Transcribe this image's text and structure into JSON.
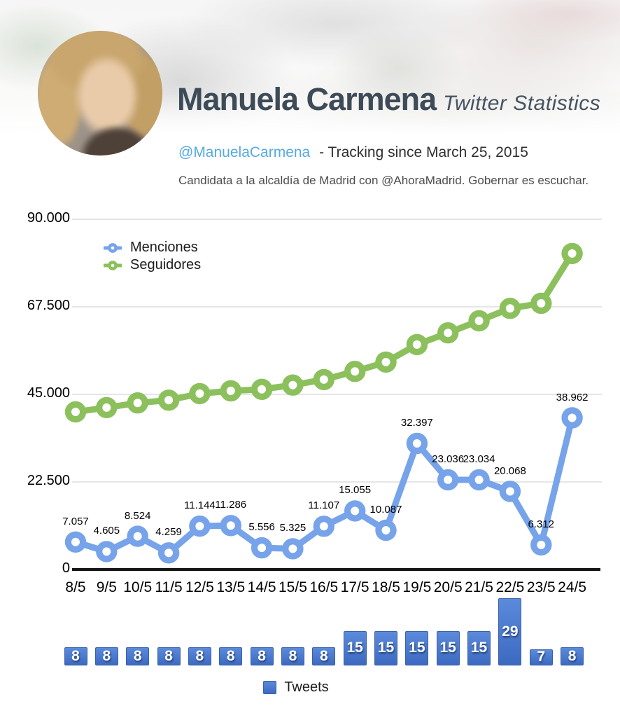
{
  "header": {
    "title": "Manuela Carmena",
    "subtitle": "Twitter Statistics",
    "handle": "@ManuelaCarmena",
    "tracking": "- Tracking since March 25, 2015",
    "bio": "Candidata a la alcaldía de Madrid con @AhoraMadrid. Gobernar es escuchar.",
    "handle_color": "#55aae2",
    "title_color": "#3d4b58"
  },
  "chart_data": [
    {
      "type": "line",
      "title": "",
      "xlabel": "",
      "ylabel": "",
      "ylim": [
        0,
        90000
      ],
      "grid": true,
      "legend_position": "top-left",
      "x": [
        "8/5",
        "9/5",
        "10/5",
        "11/5",
        "12/5",
        "13/5",
        "14/5",
        "15/5",
        "16/5",
        "17/5",
        "18/5",
        "19/5",
        "20/5",
        "21/5",
        "22/5",
        "23/5",
        "24/5"
      ],
      "yticks": [
        {
          "label": "90.000",
          "value": 90000
        },
        {
          "label": "67.500",
          "value": 67500
        },
        {
          "label": "45.000",
          "value": 45000
        },
        {
          "label": "22.500",
          "value": 22500
        },
        {
          "label": "0",
          "value": 0
        }
      ],
      "series": [
        {
          "name": "Menciones",
          "color": "#76a3e9",
          "values": [
            7057,
            4605,
            8524,
            4259,
            11144,
            11286,
            5556,
            5325,
            11107,
            15055,
            10087,
            32397,
            23036,
            23034,
            20068,
            6312,
            38962
          ],
          "labels": [
            "7.057",
            "4.605",
            "8.524",
            "4.259",
            "11.144",
            "11.286",
            "5.556",
            "5.325",
            "11.107",
            "15.055",
            "10.087",
            "32.397",
            "23.036",
            "23.034",
            "20.068",
            "6.312",
            "38.962"
          ]
        },
        {
          "name": "Seguidores",
          "color": "#8cc05d",
          "values": [
            40500,
            41600,
            42800,
            43500,
            45200,
            45900,
            46300,
            47400,
            48800,
            50900,
            53300,
            57800,
            60800,
            63900,
            67100,
            68400,
            81200
          ],
          "values_estimated": true
        }
      ]
    },
    {
      "type": "bar",
      "name": "Tweets",
      "legend": "Tweets",
      "categories": [
        "8/5",
        "9/5",
        "10/5",
        "11/5",
        "12/5",
        "13/5",
        "14/5",
        "15/5",
        "16/5",
        "17/5",
        "18/5",
        "19/5",
        "20/5",
        "21/5",
        "22/5",
        "23/5",
        "24/5"
      ],
      "values": [
        8,
        8,
        8,
        8,
        8,
        8,
        8,
        8,
        8,
        15,
        15,
        15,
        15,
        15,
        29,
        7,
        8
      ],
      "colors": {
        "top": "#5b8adb",
        "bottom": "#3c6ac1",
        "border": "#3a5fa8",
        "label": "#ffffff"
      }
    }
  ]
}
